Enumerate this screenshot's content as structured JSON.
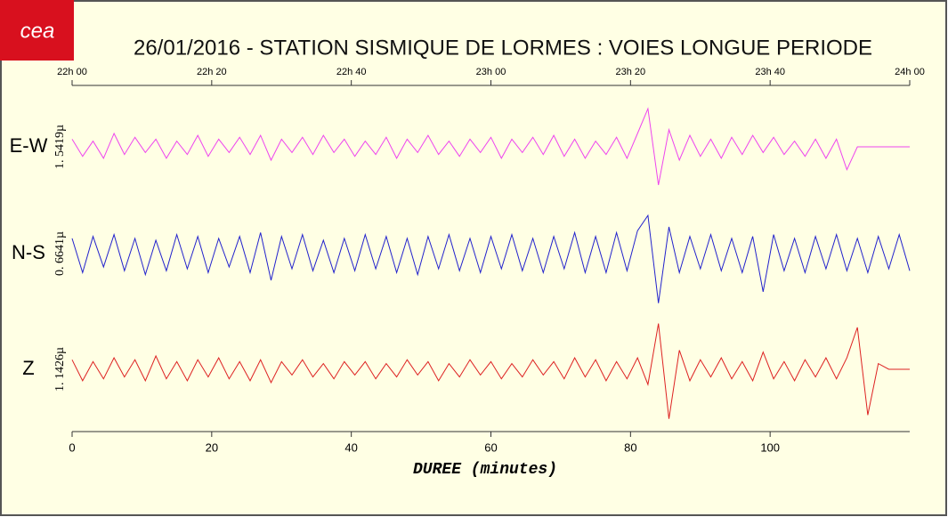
{
  "logo": "cea",
  "chart_data": {
    "type": "seismogram",
    "title": "26/01/2016  -  STATION SISMIQUE DE LORMES : VOIES LONGUE PERIODE",
    "xlabel": "DUREE (minutes)",
    "xlim": [
      0,
      120
    ],
    "xticks": [
      0,
      20,
      40,
      60,
      80,
      100
    ],
    "top_xticks": [
      {
        "value": 0,
        "label": "22h 00"
      },
      {
        "value": 20,
        "label": "22h 20"
      },
      {
        "value": 40,
        "label": "22h 40"
      },
      {
        "value": 60,
        "label": "23h 00"
      },
      {
        "value": 80,
        "label": "23h 20"
      },
      {
        "value": 100,
        "label": "23h 40"
      },
      {
        "value": 120,
        "label": "24h 00"
      }
    ],
    "ylim": [
      -1.4,
      1.4
    ],
    "x": [
      0,
      1.5,
      3,
      4.5,
      6,
      7.5,
      9,
      10.5,
      12,
      13.5,
      15,
      16.5,
      18,
      19.5,
      21,
      22.5,
      24,
      25.5,
      27,
      28.5,
      30,
      31.5,
      33,
      34.5,
      36,
      37.5,
      39,
      40.5,
      42,
      43.5,
      45,
      46.5,
      48,
      49.5,
      51,
      52.5,
      54,
      55.5,
      57,
      58.5,
      60,
      61.5,
      63,
      64.5,
      66,
      67.5,
      69,
      70.5,
      72,
      73.5,
      75,
      76.5,
      78,
      79.5,
      81,
      82.5,
      84,
      85.5,
      87,
      88.5,
      90,
      91.5,
      93,
      94.5,
      96,
      97.5,
      99,
      100.5,
      102,
      103.5,
      105,
      106.5,
      108,
      109.5,
      111,
      112.5,
      114,
      115.5,
      117,
      118.5,
      120
    ],
    "series": [
      {
        "name": "E-W",
        "scale": "1. 5419µ",
        "color": "#ee44ee",
        "values": [
          0.2,
          -0.25,
          0.15,
          -0.3,
          0.35,
          -0.2,
          0.25,
          -0.15,
          0.2,
          -0.3,
          0.15,
          -0.2,
          0.3,
          -0.25,
          0.2,
          -0.15,
          0.25,
          -0.2,
          0.3,
          -0.35,
          0.2,
          -0.15,
          0.25,
          -0.2,
          0.3,
          -0.15,
          0.2,
          -0.25,
          0.15,
          -0.2,
          0.25,
          -0.3,
          0.2,
          -0.15,
          0.3,
          -0.2,
          0.15,
          -0.25,
          0.2,
          -0.15,
          0.25,
          -0.3,
          0.2,
          -0.15,
          0.25,
          -0.2,
          0.3,
          -0.25,
          0.2,
          -0.3,
          0.15,
          -0.2,
          0.25,
          -0.3,
          0.35,
          1.0,
          -1.0,
          0.45,
          -0.35,
          0.3,
          -0.25,
          0.2,
          -0.3,
          0.25,
          -0.2,
          0.3,
          -0.15,
          0.25,
          -0.2,
          0.15,
          -0.25,
          0.2,
          -0.3,
          0.2,
          -0.6,
          0,
          0,
          0,
          0,
          0,
          0
        ]
      },
      {
        "name": "N-S",
        "scale": "0. 6641µ",
        "color": "#2222cc",
        "values": [
          0.4,
          -0.5,
          0.45,
          -0.35,
          0.5,
          -0.45,
          0.4,
          -0.55,
          0.35,
          -0.45,
          0.5,
          -0.4,
          0.45,
          -0.5,
          0.4,
          -0.35,
          0.45,
          -0.5,
          0.55,
          -0.7,
          0.45,
          -0.4,
          0.5,
          -0.45,
          0.35,
          -0.5,
          0.4,
          -0.45,
          0.5,
          -0.4,
          0.45,
          -0.5,
          0.4,
          -0.55,
          0.45,
          -0.4,
          0.5,
          -0.45,
          0.4,
          -0.5,
          0.45,
          -0.4,
          0.5,
          -0.45,
          0.4,
          -0.5,
          0.45,
          -0.4,
          0.55,
          -0.5,
          0.45,
          -0.5,
          0.55,
          -0.45,
          0.6,
          1.0,
          -1.3,
          0.7,
          -0.5,
          0.45,
          -0.4,
          0.5,
          -0.45,
          0.4,
          -0.5,
          0.45,
          -1.0,
          0.5,
          -0.45,
          0.4,
          -0.5,
          0.45,
          -0.4,
          0.5,
          -0.45,
          0.4,
          -0.5,
          0.45,
          -0.4,
          0.5,
          -0.45
        ]
      },
      {
        "name": "Z",
        "scale": "1. 1426µ",
        "color": "#dd2222",
        "values": [
          0.25,
          -0.3,
          0.2,
          -0.25,
          0.3,
          -0.2,
          0.25,
          -0.3,
          0.35,
          -0.25,
          0.2,
          -0.3,
          0.25,
          -0.2,
          0.3,
          -0.25,
          0.2,
          -0.3,
          0.25,
          -0.35,
          0.2,
          -0.15,
          0.25,
          -0.2,
          0.15,
          -0.25,
          0.2,
          -0.15,
          0.2,
          -0.25,
          0.15,
          -0.2,
          0.25,
          -0.15,
          0.2,
          -0.3,
          0.15,
          -0.2,
          0.25,
          -0.15,
          0.2,
          -0.25,
          0.15,
          -0.2,
          0.25,
          -0.15,
          0.2,
          -0.25,
          0.3,
          -0.2,
          0.25,
          -0.3,
          0.2,
          -0.25,
          0.3,
          -0.4,
          1.2,
          -1.3,
          0.5,
          -0.3,
          0.25,
          -0.2,
          0.3,
          -0.25,
          0.2,
          -0.3,
          0.45,
          -0.25,
          0.2,
          -0.3,
          0.25,
          -0.2,
          0.3,
          -0.25,
          0.3,
          1.1,
          -1.2,
          0.15,
          0,
          0,
          0
        ]
      }
    ]
  }
}
